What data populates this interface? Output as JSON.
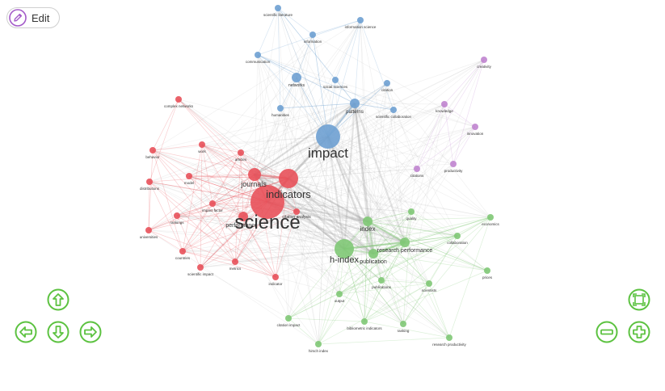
{
  "toolbar": {
    "edit_label": "Edit",
    "edit_icon": "pencil-icon"
  },
  "colors": {
    "cluster_red": "#e8515a",
    "cluster_blue": "#6ea0d2",
    "cluster_green": "#80c876",
    "cluster_purple": "#c084cf",
    "control_green": "#5cc240",
    "edit_accent": "#a45bc9"
  },
  "nodes": [
    {
      "id": "science",
      "label": "science",
      "cluster": "red",
      "w": 10
    },
    {
      "id": "indicators",
      "label": "indicators",
      "cluster": "red",
      "w": 5
    },
    {
      "id": "journals",
      "label": "journals",
      "cluster": "red",
      "w": 4
    },
    {
      "id": "performance",
      "label": "performance",
      "cluster": "red",
      "w": 3
    },
    {
      "id": "articles",
      "label": "articles",
      "cluster": "red",
      "w": 2
    },
    {
      "id": "complex_networks",
      "label": "complex networks",
      "cluster": "red",
      "w": 2
    },
    {
      "id": "behavior",
      "label": "behavior",
      "cluster": "red",
      "w": 2
    },
    {
      "id": "work",
      "label": "work",
      "cluster": "red",
      "w": 2
    },
    {
      "id": "distributions",
      "label": "distributions",
      "cluster": "red",
      "w": 2
    },
    {
      "id": "model",
      "label": "model",
      "cluster": "red",
      "w": 2
    },
    {
      "id": "impact_factor",
      "label": "impact factor",
      "cluster": "red",
      "w": 2
    },
    {
      "id": "rankings",
      "label": "rankings",
      "cluster": "red",
      "w": 2
    },
    {
      "id": "universities",
      "label": "universities",
      "cluster": "red",
      "w": 2
    },
    {
      "id": "citation_analysis",
      "label": "citation analysis",
      "cluster": "red",
      "w": 2
    },
    {
      "id": "countries",
      "label": "countries",
      "cluster": "red",
      "w": 2
    },
    {
      "id": "scientific_impact",
      "label": "scientific impact",
      "cluster": "red",
      "w": 2
    },
    {
      "id": "metrics",
      "label": "metrics",
      "cluster": "red",
      "w": 2
    },
    {
      "id": "indicator",
      "label": "indicator",
      "cluster": "red",
      "w": 2
    },
    {
      "id": "impact",
      "label": "impact",
      "cluster": "blue",
      "w": 7
    },
    {
      "id": "scientific_literature",
      "label": "scientific literature",
      "cluster": "blue",
      "w": 2
    },
    {
      "id": "information_science",
      "label": "information science",
      "cluster": "blue",
      "w": 2
    },
    {
      "id": "information",
      "label": "information",
      "cluster": "blue",
      "w": 2
    },
    {
      "id": "communication",
      "label": "communication",
      "cluster": "blue",
      "w": 2
    },
    {
      "id": "networks",
      "label": "networks",
      "cluster": "blue",
      "w": 3
    },
    {
      "id": "social_sciences",
      "label": "social sciences",
      "cluster": "blue",
      "w": 2
    },
    {
      "id": "citation",
      "label": "citation",
      "cluster": "blue",
      "w": 2
    },
    {
      "id": "patterns",
      "label": "patterns",
      "cluster": "blue",
      "w": 3
    },
    {
      "id": "scientific_collaboration",
      "label": "scientific collaboration",
      "cluster": "blue",
      "w": 2
    },
    {
      "id": "humanities",
      "label": "humanities",
      "cluster": "blue",
      "w": 2
    },
    {
      "id": "creativity",
      "label": "creativity",
      "cluster": "purple",
      "w": 2
    },
    {
      "id": "knowledge",
      "label": "knowledge",
      "cluster": "purple",
      "w": 2
    },
    {
      "id": "innovation",
      "label": "innovation",
      "cluster": "purple",
      "w": 2
    },
    {
      "id": "productivity",
      "label": "productivity",
      "cluster": "purple",
      "w": 2
    },
    {
      "id": "citations",
      "label": "citations",
      "cluster": "purple",
      "w": 2
    },
    {
      "id": "h_index",
      "label": "h-index",
      "cluster": "green",
      "w": 5
    },
    {
      "id": "index",
      "label": "index",
      "cluster": "green",
      "w": 3
    },
    {
      "id": "research_performance",
      "label": "research performance",
      "cluster": "green",
      "w": 3
    },
    {
      "id": "publication",
      "label": "publication",
      "cluster": "green",
      "w": 3
    },
    {
      "id": "quality",
      "label": "quality",
      "cluster": "green",
      "w": 2
    },
    {
      "id": "economics",
      "label": "economics",
      "cluster": "green",
      "w": 2
    },
    {
      "id": "collaboration",
      "label": "collaboration",
      "cluster": "green",
      "w": 2
    },
    {
      "id": "prices",
      "label": "prices",
      "cluster": "green",
      "w": 2
    },
    {
      "id": "publications",
      "label": "publications",
      "cluster": "green",
      "w": 2
    },
    {
      "id": "scientists",
      "label": "scientists",
      "cluster": "green",
      "w": 2
    },
    {
      "id": "output",
      "label": "output",
      "cluster": "green",
      "w": 2
    },
    {
      "id": "citation_impact",
      "label": "citation impact",
      "cluster": "green",
      "w": 2
    },
    {
      "id": "bibliometric_indicators",
      "label": "bibliometric indicators",
      "cluster": "green",
      "w": 2
    },
    {
      "id": "ranking",
      "label": "ranking",
      "cluster": "green",
      "w": 2
    },
    {
      "id": "hirsch_index",
      "label": "hirsch index",
      "cluster": "green",
      "w": 2
    },
    {
      "id": "research_productivity",
      "label": "research productivity",
      "cluster": "green",
      "w": 2
    }
  ],
  "navigation": {
    "up_icon": "arrow-up-icon",
    "left_icon": "arrow-left-icon",
    "down_icon": "arrow-down-icon",
    "right_icon": "arrow-right-icon",
    "fit_icon": "zoom-extends-icon",
    "zoom_out_icon": "minus-icon",
    "zoom_in_icon": "plus-icon"
  }
}
